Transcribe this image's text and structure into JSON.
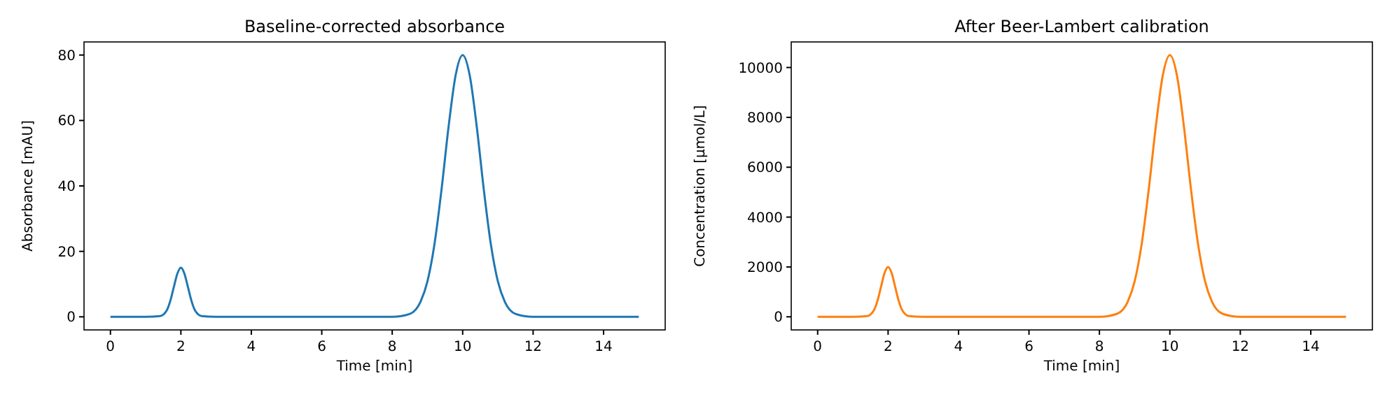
{
  "chart_data": [
    {
      "type": "line",
      "title": "Baseline-corrected absorbance",
      "xlabel": "Time [min]",
      "ylabel": "Absorbance [mAU]",
      "x": [
        0,
        1,
        1.4,
        1.6,
        1.7,
        1.8,
        1.9,
        2,
        2.1,
        2.2,
        2.3,
        2.4,
        2.6,
        3,
        8,
        8.5,
        8.8,
        9,
        9.2,
        9.4,
        9.6,
        9.8,
        10,
        10.2,
        10.4,
        10.6,
        10.8,
        11,
        11.2,
        11.5,
        12,
        15
      ],
      "series": [
        {
          "color": "#1f77b4",
          "values": [
            0,
            0,
            0.2,
            2,
            4.9,
            9.1,
            13.2,
            15,
            13.2,
            9.1,
            4.9,
            2,
            0.2,
            0,
            0,
            0.9,
            4.5,
            10.8,
            22.2,
            38.9,
            58.1,
            73.8,
            80,
            73.8,
            58.1,
            38.9,
            22.2,
            10.8,
            4.5,
            0.9,
            0,
            0
          ]
        }
      ],
      "xlim": [
        -0.75,
        15.75
      ],
      "ylim": [
        -4,
        84
      ],
      "xticks": [
        0,
        2,
        4,
        6,
        8,
        10,
        12,
        14
      ],
      "yticks": [
        0,
        20,
        40,
        60,
        80
      ],
      "grid": false
    },
    {
      "type": "line",
      "title": "After Beer-Lambert calibration",
      "xlabel": "Time [min]",
      "ylabel": "Concentration [µmol/L]",
      "x": [
        0,
        1,
        1.4,
        1.6,
        1.7,
        1.8,
        1.9,
        2,
        2.1,
        2.2,
        2.3,
        2.4,
        2.6,
        3,
        8,
        8.5,
        8.8,
        9,
        9.2,
        9.4,
        9.6,
        9.8,
        10,
        10.2,
        10.4,
        10.6,
        10.8,
        11,
        11.2,
        11.5,
        12,
        15
      ],
      "series": [
        {
          "color": "#ff7f0e",
          "values": [
            0,
            0,
            30,
            270,
            650,
            1210,
            1760,
            2000,
            1760,
            1210,
            650,
            270,
            30,
            0,
            0,
            120,
            590,
            1420,
            2920,
            5110,
            7620,
            9690,
            10500,
            9690,
            7620,
            5110,
            2920,
            1420,
            590,
            120,
            0,
            0
          ]
        }
      ],
      "xlim": [
        -0.75,
        15.75
      ],
      "ylim": [
        -525,
        11025
      ],
      "xticks": [
        0,
        2,
        4,
        6,
        8,
        10,
        12,
        14
      ],
      "yticks": [
        0,
        2000,
        4000,
        6000,
        8000,
        10000
      ],
      "grid": false
    }
  ]
}
